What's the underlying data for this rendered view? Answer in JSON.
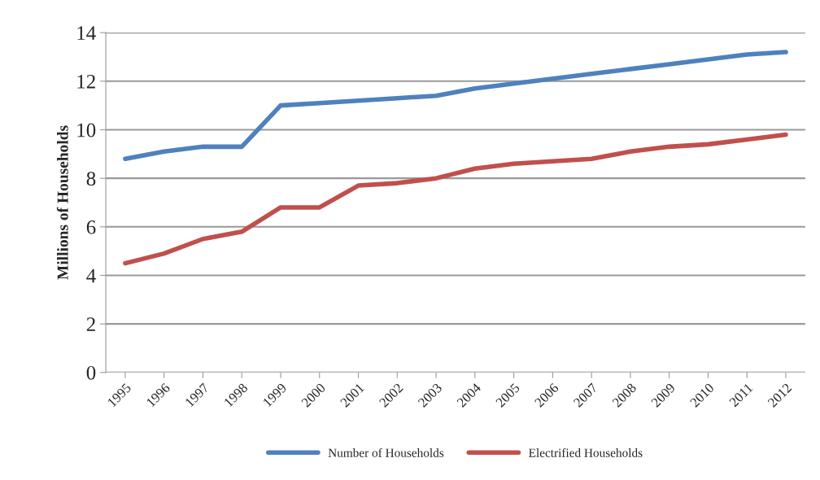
{
  "chart_data": {
    "type": "line",
    "ylabel": "Millions of Households",
    "categories": [
      "1995",
      "1996",
      "1997",
      "1998",
      "1999",
      "2000",
      "2001",
      "2002",
      "2003",
      "2004",
      "2005",
      "2006",
      "2007",
      "2008",
      "2009",
      "2010",
      "2011",
      "2012"
    ],
    "series": [
      {
        "name": "Number of Households",
        "color": "#4f81bd",
        "values": [
          8.8,
          9.1,
          9.3,
          9.3,
          11.0,
          11.1,
          11.2,
          11.3,
          11.4,
          11.7,
          11.9,
          12.1,
          12.3,
          12.5,
          12.7,
          12.9,
          13.1,
          13.2
        ]
      },
      {
        "name": "Electrified Households",
        "color": "#c0504d",
        "values": [
          4.5,
          4.9,
          5.5,
          5.8,
          6.8,
          6.8,
          7.7,
          7.8,
          8.0,
          8.4,
          8.6,
          8.7,
          8.8,
          9.1,
          9.3,
          9.4,
          9.6,
          9.8
        ]
      }
    ],
    "ylim": [
      0,
      14
    ],
    "yticks": [
      0,
      2,
      4,
      6,
      8,
      10,
      12,
      14
    ],
    "grid": "y",
    "legend": "bottom",
    "marker": "none",
    "line_style": "solid"
  }
}
